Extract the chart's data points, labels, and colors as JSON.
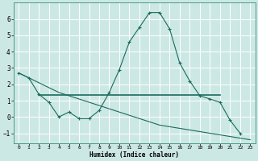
{
  "xlabel": "Humidex (Indice chaleur)",
  "ylabel": "",
  "background_color": "#cce8e4",
  "grid_color": "#ffffff",
  "line_color": "#1a6b5e",
  "xlim": [
    -0.5,
    23.5
  ],
  "ylim": [
    -1.6,
    7.0
  ],
  "yticks": [
    -1,
    0,
    1,
    2,
    3,
    4,
    5,
    6
  ],
  "xticks": [
    0,
    1,
    2,
    3,
    4,
    5,
    6,
    7,
    8,
    9,
    10,
    11,
    12,
    13,
    14,
    15,
    16,
    17,
    18,
    19,
    20,
    21,
    22,
    23
  ],
  "line1_x": [
    0,
    1,
    2,
    3,
    4,
    5,
    6,
    7,
    8,
    9,
    10,
    11,
    12,
    13,
    14,
    15,
    16,
    17,
    18,
    19,
    20,
    21,
    22
  ],
  "line1_y": [
    2.7,
    2.4,
    1.4,
    0.9,
    0.0,
    0.3,
    -0.1,
    -0.1,
    0.4,
    1.5,
    2.9,
    4.6,
    5.5,
    6.4,
    6.4,
    5.4,
    3.3,
    2.2,
    1.3,
    1.1,
    0.9,
    -0.2,
    -1.0
  ],
  "line2_x": [
    2,
    3,
    4,
    5,
    6,
    7,
    8,
    9,
    10,
    11,
    12,
    13,
    14,
    15,
    16,
    17,
    18,
    19,
    20
  ],
  "line2_y": [
    1.35,
    1.35,
    1.35,
    1.35,
    1.35,
    1.35,
    1.35,
    1.35,
    1.35,
    1.35,
    1.35,
    1.35,
    1.35,
    1.35,
    1.35,
    1.35,
    1.35,
    1.35,
    1.35
  ],
  "line3_x": [
    0,
    1,
    2,
    3,
    4,
    5,
    6,
    7,
    8,
    9,
    10,
    11,
    12,
    13,
    14,
    15,
    16,
    17,
    18,
    19,
    20,
    21,
    22,
    23
  ],
  "line3_y": [
    2.7,
    2.4,
    2.1,
    1.8,
    1.5,
    1.3,
    1.1,
    0.9,
    0.7,
    0.5,
    0.3,
    0.1,
    -0.1,
    -0.3,
    -0.5,
    -0.6,
    -0.7,
    -0.8,
    -0.9,
    -1.0,
    -1.1,
    -1.2,
    -1.3,
    -1.4
  ]
}
